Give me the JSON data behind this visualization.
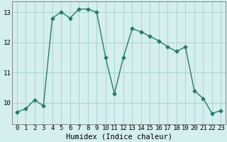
{
  "x": [
    0,
    1,
    2,
    3,
    4,
    5,
    6,
    7,
    8,
    9,
    10,
    11,
    12,
    13,
    14,
    15,
    16,
    17,
    18,
    19,
    20,
    21,
    22,
    23
  ],
  "y": [
    9.7,
    9.8,
    10.1,
    9.9,
    12.8,
    13.0,
    12.8,
    13.1,
    13.1,
    13.0,
    11.5,
    10.3,
    11.5,
    12.45,
    12.35,
    12.2,
    12.05,
    11.85,
    11.7,
    11.85,
    10.4,
    10.15,
    9.65,
    9.75
  ],
  "line_color": "#2a7a6a",
  "marker": "D",
  "marker_size": 2.5,
  "bg_color": "#d5eeee",
  "grid_color": "#aad4d4",
  "xlabel": "Humidex (Indice chaleur)",
  "ylim": [
    9.3,
    13.35
  ],
  "xlim": [
    -0.5,
    23.5
  ],
  "yticks": [
    10,
    11,
    12,
    13
  ],
  "xticks": [
    0,
    1,
    2,
    3,
    4,
    5,
    6,
    7,
    8,
    9,
    10,
    11,
    12,
    13,
    14,
    15,
    16,
    17,
    18,
    19,
    20,
    21,
    22,
    23
  ],
  "tick_fontsize": 6.5,
  "xlabel_fontsize": 7.5
}
